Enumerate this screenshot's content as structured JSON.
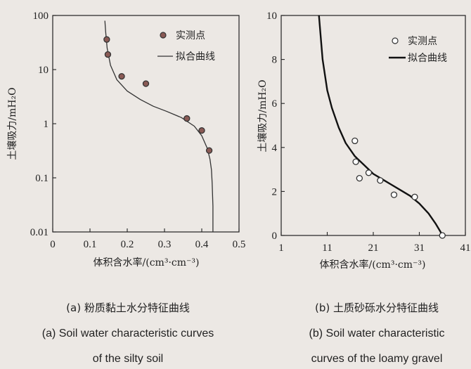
{
  "chart_data": [
    {
      "type": "scatter",
      "panel": "a",
      "x_scale": "linear",
      "y_scale": "log",
      "xlim": [
        0,
        0.5
      ],
      "ylim": [
        0.01,
        100
      ],
      "x_ticks": [
        "0",
        "0.1",
        "0.2",
        "0.3",
        "0.4",
        "0.5"
      ],
      "y_ticks": [
        "0.01",
        "0.1",
        "1",
        "10",
        "100"
      ],
      "xlabel": "体积含水率/(cm³·cm⁻³)",
      "ylabel": "土壤吸力/mH₂O",
      "legend_position": "top-right",
      "series": [
        {
          "name": "实测点",
          "kind": "points",
          "marker": "dotted-circle",
          "x": [
            0.145,
            0.148,
            0.185,
            0.25,
            0.36,
            0.4,
            0.42
          ],
          "y": [
            36,
            19,
            7.5,
            5.5,
            1.25,
            0.75,
            0.32
          ]
        },
        {
          "name": "拟合曲线",
          "kind": "line",
          "x": [
            0.14,
            0.142,
            0.146,
            0.155,
            0.172,
            0.2,
            0.235,
            0.27,
            0.305,
            0.345,
            0.38,
            0.4,
            0.415,
            0.422,
            0.426,
            0.428,
            0.43,
            0.43
          ],
          "y": [
            80,
            50,
            25,
            12,
            6.5,
            4.0,
            2.8,
            2.1,
            1.7,
            1.3,
            0.9,
            0.6,
            0.35,
            0.22,
            0.14,
            0.08,
            0.03,
            0.01
          ]
        }
      ],
      "caption_cn": "(a) 粉质黏土水分特征曲线",
      "caption_en": [
        "(a) Soil water characteristic curves",
        "of the silty soil"
      ]
    },
    {
      "type": "scatter",
      "panel": "b",
      "x_scale": "linear",
      "y_scale": "linear",
      "xlim": [
        1,
        41
      ],
      "ylim": [
        0,
        10
      ],
      "x_ticks": [
        "1",
        "11",
        "21",
        "31",
        "41"
      ],
      "y_ticks": [
        "0",
        "2",
        "4",
        "6",
        "8",
        "10"
      ],
      "xlabel": "体积含水率/(cm³·cm⁻³)",
      "ylabel": "土壤吸力/mH₂O",
      "legend_position": "top-right",
      "series": [
        {
          "name": "实测点",
          "kind": "points",
          "marker": "open-circle",
          "x": [
            17.0,
            17.2,
            18.0,
            20.0,
            22.5,
            25.5,
            30.0,
            36.0
          ],
          "y": [
            4.3,
            3.35,
            2.6,
            2.85,
            2.5,
            1.85,
            1.75,
            0.0
          ]
        },
        {
          "name": "拟合曲线",
          "kind": "line",
          "x": [
            9.2,
            10.0,
            11.0,
            12.0,
            13.5,
            15.0,
            17.0,
            19.0,
            21.0,
            23.0,
            25.0,
            27.0,
            29.0,
            31.0,
            33.0,
            34.5,
            35.5,
            36.0
          ],
          "y": [
            10,
            8.0,
            6.6,
            5.8,
            4.9,
            4.2,
            3.6,
            3.2,
            2.8,
            2.55,
            2.3,
            2.05,
            1.8,
            1.45,
            1.0,
            0.55,
            0.2,
            0.0
          ]
        }
      ],
      "caption_cn": "(b) 土质砂砾水分特征曲线",
      "caption_en": [
        "(b) Soil water characteristic",
        "curves of the loamy gravel"
      ]
    }
  ]
}
